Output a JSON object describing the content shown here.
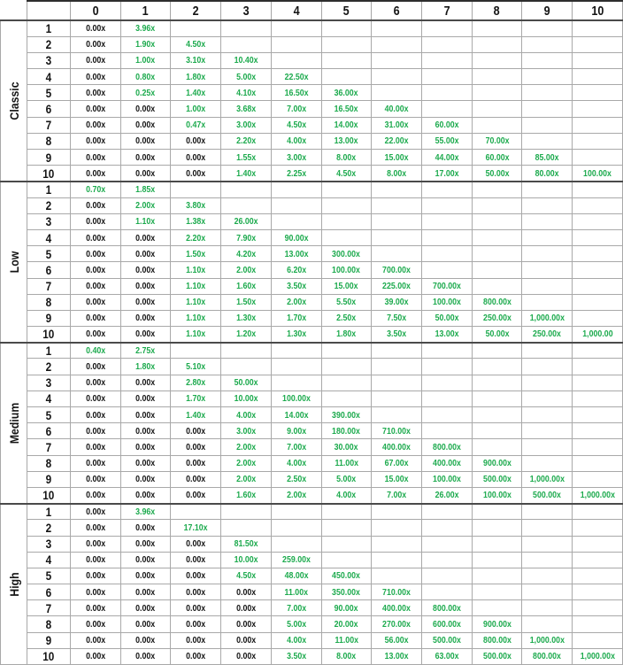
{
  "paytable": {
    "header": {
      "corner_label": "",
      "row_header_label": "",
      "columns": [
        "0",
        "1",
        "2",
        "3",
        "4",
        "5",
        "6",
        "7",
        "8",
        "9",
        "10"
      ]
    },
    "colors": {
      "zero_value": "#141414",
      "positive_value": "#1caa4d",
      "grid_line": "#a9a9a9",
      "section_line": "#4a4a4a"
    },
    "sections": [
      {
        "label": "Classic",
        "rows": [
          {
            "n": "1",
            "values": [
              "0.00x",
              "3.96x"
            ]
          },
          {
            "n": "2",
            "values": [
              "0.00x",
              "1.90x",
              "4.50x"
            ]
          },
          {
            "n": "3",
            "values": [
              "0.00x",
              "1.00x",
              "3.10x",
              "10.40x"
            ]
          },
          {
            "n": "4",
            "values": [
              "0.00x",
              "0.80x",
              "1.80x",
              "5.00x",
              "22.50x"
            ]
          },
          {
            "n": "5",
            "values": [
              "0.00x",
              "0.25x",
              "1.40x",
              "4.10x",
              "16.50x",
              "36.00x"
            ]
          },
          {
            "n": "6",
            "values": [
              "0.00x",
              "0.00x",
              "1.00x",
              "3.68x",
              "7.00x",
              "16.50x",
              "40.00x"
            ]
          },
          {
            "n": "7",
            "values": [
              "0.00x",
              "0.00x",
              "0.47x",
              "3.00x",
              "4.50x",
              "14.00x",
              "31.00x",
              "60.00x"
            ]
          },
          {
            "n": "8",
            "values": [
              "0.00x",
              "0.00x",
              "0.00x",
              "2.20x",
              "4.00x",
              "13.00x",
              "22.00x",
              "55.00x",
              "70.00x"
            ]
          },
          {
            "n": "9",
            "values": [
              "0.00x",
              "0.00x",
              "0.00x",
              "1.55x",
              "3.00x",
              "8.00x",
              "15.00x",
              "44.00x",
              "60.00x",
              "85.00x"
            ]
          },
          {
            "n": "10",
            "values": [
              "0.00x",
              "0.00x",
              "0.00x",
              "1.40x",
              "2.25x",
              "4.50x",
              "8.00x",
              "17.00x",
              "50.00x",
              "80.00x",
              "100.00x"
            ]
          }
        ]
      },
      {
        "label": "Low",
        "rows": [
          {
            "n": "1",
            "values": [
              "0.70x",
              "1.85x"
            ]
          },
          {
            "n": "2",
            "values": [
              "0.00x",
              "2.00x",
              "3.80x"
            ]
          },
          {
            "n": "3",
            "values": [
              "0.00x",
              "1.10x",
              "1.38x",
              "26.00x"
            ]
          },
          {
            "n": "4",
            "values": [
              "0.00x",
              "0.00x",
              "2.20x",
              "7.90x",
              "90.00x"
            ]
          },
          {
            "n": "5",
            "values": [
              "0.00x",
              "0.00x",
              "1.50x",
              "4.20x",
              "13.00x",
              "300.00x"
            ]
          },
          {
            "n": "6",
            "values": [
              "0.00x",
              "0.00x",
              "1.10x",
              "2.00x",
              "6.20x",
              "100.00x",
              "700.00x"
            ]
          },
          {
            "n": "7",
            "values": [
              "0.00x",
              "0.00x",
              "1.10x",
              "1.60x",
              "3.50x",
              "15.00x",
              "225.00x",
              "700.00x"
            ]
          },
          {
            "n": "8",
            "values": [
              "0.00x",
              "0.00x",
              "1.10x",
              "1.50x",
              "2.00x",
              "5.50x",
              "39.00x",
              "100.00x",
              "800.00x"
            ]
          },
          {
            "n": "9",
            "values": [
              "0.00x",
              "0.00x",
              "1.10x",
              "1.30x",
              "1.70x",
              "2.50x",
              "7.50x",
              "50.00x",
              "250.00x",
              "1,000.00x"
            ]
          },
          {
            "n": "10",
            "values": [
              "0.00x",
              "0.00x",
              "1.10x",
              "1.20x",
              "1.30x",
              "1.80x",
              "3.50x",
              "13.00x",
              "50.00x",
              "250.00x",
              "1,000.00"
            ]
          }
        ]
      },
      {
        "label": "Medium",
        "rows": [
          {
            "n": "1",
            "values": [
              "0.40x",
              "2.75x"
            ]
          },
          {
            "n": "2",
            "values": [
              "0.00x",
              "1.80x",
              "5.10x"
            ]
          },
          {
            "n": "3",
            "values": [
              "0.00x",
              "0.00x",
              "2.80x",
              "50.00x"
            ]
          },
          {
            "n": "4",
            "values": [
              "0.00x",
              "0.00x",
              "1.70x",
              "10.00x",
              "100.00x"
            ]
          },
          {
            "n": "5",
            "values": [
              "0.00x",
              "0.00x",
              "1.40x",
              "4.00x",
              "14.00x",
              "390.00x"
            ]
          },
          {
            "n": "6",
            "values": [
              "0.00x",
              "0.00x",
              "0.00x",
              "3.00x",
              "9.00x",
              "180.00x",
              "710.00x"
            ]
          },
          {
            "n": "7",
            "values": [
              "0.00x",
              "0.00x",
              "0.00x",
              "2.00x",
              "7.00x",
              "30.00x",
              "400.00x",
              "800.00x"
            ]
          },
          {
            "n": "8",
            "values": [
              "0.00x",
              "0.00x",
              "0.00x",
              "2.00x",
              "4.00x",
              "11.00x",
              "67.00x",
              "400.00x",
              "900.00x"
            ]
          },
          {
            "n": "9",
            "values": [
              "0.00x",
              "0.00x",
              "0.00x",
              "2.00x",
              "2.50x",
              "5.00x",
              "15.00x",
              "100.00x",
              "500.00x",
              "1,000.00x"
            ]
          },
          {
            "n": "10",
            "values": [
              "0.00x",
              "0.00x",
              "0.00x",
              "1.60x",
              "2.00x",
              "4.00x",
              "7.00x",
              "26.00x",
              "100.00x",
              "500.00x",
              "1,000.00x"
            ]
          }
        ]
      },
      {
        "label": "High",
        "rows": [
          {
            "n": "1",
            "values": [
              "0.00x",
              "3.96x"
            ]
          },
          {
            "n": "2",
            "values": [
              "0.00x",
              "0.00x",
              "17.10x"
            ]
          },
          {
            "n": "3",
            "values": [
              "0.00x",
              "0.00x",
              "0.00x",
              "81.50x"
            ]
          },
          {
            "n": "4",
            "values": [
              "0.00x",
              "0.00x",
              "0.00x",
              "10.00x",
              "259.00x"
            ]
          },
          {
            "n": "5",
            "values": [
              "0.00x",
              "0.00x",
              "0.00x",
              "4.50x",
              "48.00x",
              "450.00x"
            ]
          },
          {
            "n": "6",
            "values": [
              "0.00x",
              "0.00x",
              "0.00x",
              "0.00x",
              "11.00x",
              "350.00x",
              "710.00x"
            ]
          },
          {
            "n": "7",
            "values": [
              "0.00x",
              "0.00x",
              "0.00x",
              "0.00x",
              "7.00x",
              "90.00x",
              "400.00x",
              "800.00x"
            ]
          },
          {
            "n": "8",
            "values": [
              "0.00x",
              "0.00x",
              "0.00x",
              "0.00x",
              "5.00x",
              "20.00x",
              "270.00x",
              "600.00x",
              "900.00x"
            ]
          },
          {
            "n": "9",
            "values": [
              "0.00x",
              "0.00x",
              "0.00x",
              "0.00x",
              "4.00x",
              "11.00x",
              "56.00x",
              "500.00x",
              "800.00x",
              "1,000.00x"
            ]
          },
          {
            "n": "10",
            "values": [
              "0.00x",
              "0.00x",
              "0.00x",
              "0.00x",
              "3.50x",
              "8.00x",
              "13.00x",
              "63.00x",
              "500.00x",
              "800.00x",
              "1,000.00x"
            ]
          }
        ]
      }
    ]
  }
}
